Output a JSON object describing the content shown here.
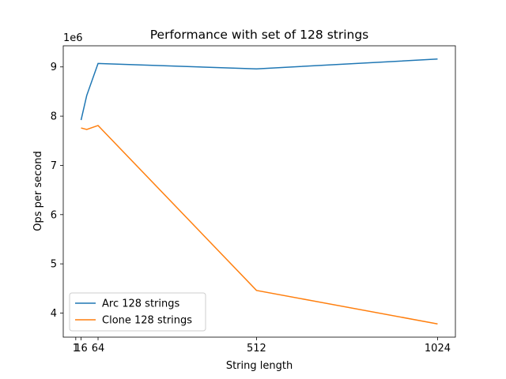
{
  "chart_data": {
    "type": "line",
    "title": "Performance with set of 128 strings",
    "xlabel": "String length",
    "ylabel": "Ops per second",
    "y_offset_label": "1e6",
    "x": [
      16,
      32,
      64,
      512,
      1024
    ],
    "series": [
      {
        "name": "Arc 128 strings",
        "color": "#1f77b4",
        "values": [
          7.92,
          8.42,
          9.07,
          8.96,
          9.16
        ]
      },
      {
        "name": "Clone 128 strings",
        "color": "#ff7f0e",
        "values": [
          7.76,
          7.73,
          7.81,
          4.46,
          3.78
        ]
      }
    ],
    "xlim": [
      -34.4,
      1074.4
    ],
    "xticks": [
      1,
      16,
      64,
      512,
      1024
    ],
    "ylim": [
      3.511,
      9.429
    ],
    "yticks": [
      4,
      5,
      6,
      7,
      8,
      9
    ],
    "legend": "lower left"
  }
}
